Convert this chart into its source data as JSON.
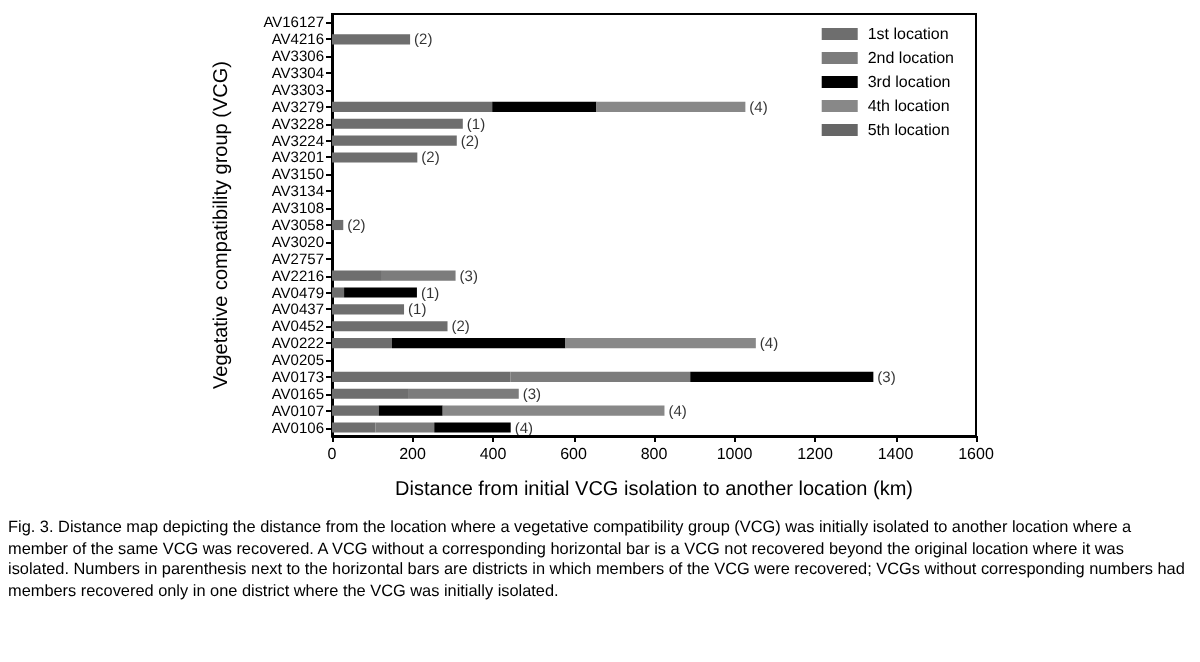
{
  "chart_data": {
    "type": "bar",
    "orientation": "horizontal",
    "stacked": true,
    "xlabel": "Distance from initial VCG isolation to another location (km)",
    "ylabel": "Vegetative compatibility group (VCG)",
    "categories": [
      "AV16127",
      "AV4216",
      "AV3306",
      "AV3304",
      "AV3303",
      "AV3279",
      "AV3228",
      "AV3224",
      "AV3201",
      "AV3150",
      "AV3134",
      "AV3108",
      "AV3058",
      "AV3020",
      "AV2757",
      "AV2216",
      "AV0479",
      "AV0437",
      "AV0452",
      "AV0222",
      "AV0205",
      "AV0173",
      "AV0165",
      "AV0107",
      "AV0106"
    ],
    "series": [
      {
        "name": "1st location",
        "color": "#6e6e6e",
        "values": [
          null,
          194,
          null,
          null,
          null,
          398,
          325,
          310,
          212,
          null,
          null,
          null,
          28,
          null,
          null,
          124,
          30,
          179,
          287,
          149,
          null,
          443,
          191,
          116,
          108
        ]
      },
      {
        "name": "2nd location",
        "color": "#7c7c7c",
        "values": [
          null,
          null,
          null,
          null,
          null,
          null,
          null,
          null,
          null,
          null,
          null,
          null,
          null,
          null,
          null,
          183,
          null,
          null,
          null,
          null,
          null,
          447,
          273,
          null,
          146
        ]
      },
      {
        "name": "3rd location",
        "color": "#000000",
        "values": [
          null,
          null,
          null,
          null,
          null,
          259,
          null,
          null,
          null,
          null,
          null,
          null,
          null,
          null,
          null,
          null,
          181,
          null,
          null,
          431,
          null,
          455,
          null,
          159,
          190
        ]
      },
      {
        "name": "4th location",
        "color": "#888888",
        "values": [
          null,
          null,
          null,
          null,
          null,
          370,
          null,
          null,
          null,
          null,
          null,
          null,
          null,
          null,
          null,
          null,
          null,
          null,
          null,
          473,
          null,
          null,
          null,
          551,
          null
        ]
      },
      {
        "name": "5th location",
        "color": "#666666",
        "values": [
          null,
          null,
          null,
          null,
          null,
          null,
          null,
          null,
          null,
          null,
          null,
          null,
          null,
          null,
          null,
          null,
          null,
          null,
          null,
          null,
          null,
          null,
          null,
          null,
          null
        ]
      }
    ],
    "xlim": [
      0,
      1600
    ],
    "xticks": [
      0,
      200,
      400,
      600,
      800,
      1000,
      1200,
      1400,
      1600
    ],
    "grid": false,
    "legend": "top right",
    "annotations": [
      {
        "text": "(2)",
        "x": 194,
        "y": "AV4216"
      },
      {
        "text": "(4)",
        "x": 1027,
        "y": "AV3279"
      },
      {
        "text": "(1)",
        "x": 325,
        "y": "AV3228"
      },
      {
        "text": "(2)",
        "x": 310,
        "y": "AV3224"
      },
      {
        "text": "(2)",
        "x": 212,
        "y": "AV3201"
      },
      {
        "text": "(2)",
        "x": 28,
        "y": "AV3058"
      },
      {
        "text": "(3)",
        "x": 307,
        "y": "AV2216"
      },
      {
        "text": "(1)",
        "x": 211,
        "y": "AV0479"
      },
      {
        "text": "(1)",
        "x": 179,
        "y": "AV0437"
      },
      {
        "text": "(2)",
        "x": 287,
        "y": "AV0452"
      },
      {
        "text": "(4)",
        "x": 1053,
        "y": "AV0222"
      },
      {
        "text": "(3)",
        "x": 1345,
        "y": "AV0173"
      },
      {
        "text": "(3)",
        "x": 464,
        "y": "AV0165"
      },
      {
        "text": "(4)",
        "x": 826,
        "y": "AV0107"
      },
      {
        "text": "(4)",
        "x": 444,
        "y": "AV0106"
      },
      "Fig. 3. Distance map depicting the distance from the location where a vegetative compatibility group (VCG) was initially isolated to another location where a member of the same VCG was recovered. A VCG without a corresponding horizontal bar is a VCG not recovered beyond the original location where it was isolated. Numbers in parenthesis next to the horizontal bars are districts in which members of the VCG were recovered; VCGs without corresponding numbers had members recovered only in one district where the VCG was initially isolated."
    ]
  }
}
